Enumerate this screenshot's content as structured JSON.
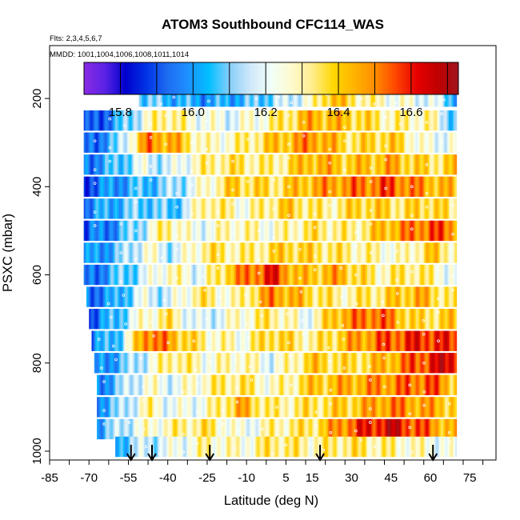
{
  "chart_data": {
    "type": "heatmap",
    "title": "ATOM3 Southbound CFC114_WAS",
    "flights_note": "Flts: 2,3,4,5,6,7",
    "dates_note": "MMDD: 1001,1004,1006,1008,1011,1014",
    "xlabel": "Latitude (deg N)",
    "ylabel": "PSXC (mbar)",
    "xlim": [
      -85,
      85
    ],
    "ylim": [
      1020,
      80
    ],
    "x_ticks": [
      -85,
      -70,
      -55,
      -40,
      -25,
      -10,
      5,
      15,
      30,
      45,
      60,
      75
    ],
    "y_ticks": [
      200,
      400,
      600,
      800,
      1000
    ],
    "colorbar": {
      "min": 15.7,
      "max": 16.73,
      "ticks": [
        15.8,
        16.0,
        16.2,
        16.4,
        16.6
      ],
      "colors": [
        "#8a2be2",
        "#5b22e6",
        "#0000cd",
        "#0033e6",
        "#1e6cf0",
        "#1e90ff",
        "#00bfff",
        "#87cefa",
        "#d0e8fa",
        "#f0fff8",
        "#fffacd",
        "#ffec8b",
        "#ffd700",
        "#ffb300",
        "#ff8c00",
        "#ff4500",
        "#e60000",
        "#c00000",
        "#a0141e"
      ]
    },
    "bands": [
      {
        "p": 200,
        "lat_min": -51,
        "lat_max": 70,
        "points": [
          [
            -51,
            16.1
          ],
          [
            -40,
            16.05
          ],
          [
            -25,
            16.0
          ],
          [
            -10,
            16.05
          ],
          [
            5,
            16.15
          ],
          [
            15,
            16.25
          ],
          [
            22,
            16.45
          ],
          [
            30,
            16.35
          ],
          [
            45,
            16.25
          ],
          [
            60,
            16.2
          ],
          [
            70,
            16.05
          ]
        ]
      },
      {
        "p": 250,
        "lat_min": -72,
        "lat_max": 70,
        "points": [
          [
            -72,
            15.85
          ],
          [
            -60,
            16.0
          ],
          [
            -50,
            16.2
          ],
          [
            -42,
            16.35
          ],
          [
            -30,
            16.25
          ],
          [
            -15,
            16.2
          ],
          [
            0,
            16.3
          ],
          [
            15,
            16.45
          ],
          [
            30,
            16.4
          ],
          [
            45,
            16.3
          ],
          [
            60,
            16.3
          ],
          [
            70,
            16.05
          ]
        ]
      },
      {
        "p": 300,
        "lat_min": -72,
        "lat_max": 70,
        "points": [
          [
            -72,
            15.9
          ],
          [
            -60,
            16.05
          ],
          [
            -48,
            16.5
          ],
          [
            -38,
            16.45
          ],
          [
            -25,
            16.25
          ],
          [
            -12,
            16.3
          ],
          [
            0,
            16.4
          ],
          [
            15,
            16.5
          ],
          [
            30,
            16.35
          ],
          [
            45,
            16.4
          ],
          [
            60,
            16.2
          ],
          [
            70,
            16.25
          ]
        ]
      },
      {
        "p": 350,
        "lat_min": -72,
        "lat_max": 70,
        "points": [
          [
            -72,
            15.95
          ],
          [
            -60,
            16.05
          ],
          [
            -50,
            16.2
          ],
          [
            -40,
            16.15
          ],
          [
            -28,
            16.3
          ],
          [
            -15,
            16.35
          ],
          [
            0,
            16.3
          ],
          [
            15,
            16.45
          ],
          [
            30,
            16.4
          ],
          [
            45,
            16.45
          ],
          [
            60,
            16.35
          ],
          [
            70,
            16.4
          ]
        ]
      },
      {
        "p": 400,
        "lat_min": -72,
        "lat_max": 70,
        "points": [
          [
            -72,
            15.9
          ],
          [
            -60,
            16.0
          ],
          [
            -50,
            16.05
          ],
          [
            -40,
            16.1
          ],
          [
            -30,
            16.2
          ],
          [
            -15,
            16.4
          ],
          [
            0,
            16.35
          ],
          [
            15,
            16.45
          ],
          [
            30,
            16.5
          ],
          [
            45,
            16.55
          ],
          [
            60,
            16.45
          ],
          [
            70,
            16.4
          ]
        ]
      },
      {
        "p": 450,
        "lat_min": -72,
        "lat_max": 70,
        "points": [
          [
            -72,
            15.95
          ],
          [
            -60,
            16.05
          ],
          [
            -48,
            16.1
          ],
          [
            -38,
            16.05
          ],
          [
            -25,
            16.35
          ],
          [
            -10,
            16.25
          ],
          [
            5,
            16.4
          ],
          [
            20,
            16.3
          ],
          [
            35,
            16.4
          ],
          [
            50,
            16.35
          ],
          [
            60,
            16.4
          ],
          [
            70,
            16.3
          ]
        ]
      },
      {
        "p": 500,
        "lat_min": -72,
        "lat_max": 70,
        "points": [
          [
            -72,
            15.9
          ],
          [
            -60,
            16.0
          ],
          [
            -50,
            16.15
          ],
          [
            -40,
            16.35
          ],
          [
            -30,
            16.2
          ],
          [
            -15,
            16.3
          ],
          [
            0,
            16.25
          ],
          [
            15,
            16.35
          ],
          [
            30,
            16.3
          ],
          [
            45,
            16.45
          ],
          [
            60,
            16.55
          ],
          [
            70,
            16.5
          ]
        ]
      },
      {
        "p": 550,
        "lat_min": -72,
        "lat_max": 70,
        "points": [
          [
            -72,
            15.95
          ],
          [
            -60,
            16.05
          ],
          [
            -48,
            16.25
          ],
          [
            -38,
            16.15
          ],
          [
            -25,
            16.35
          ],
          [
            -10,
            16.3
          ],
          [
            5,
            16.4
          ],
          [
            20,
            16.35
          ],
          [
            35,
            16.3
          ],
          [
            50,
            16.25
          ],
          [
            60,
            16.4
          ],
          [
            70,
            16.3
          ]
        ]
      },
      {
        "p": 600,
        "lat_min": -72,
        "lat_max": 70,
        "points": [
          [
            -72,
            15.9
          ],
          [
            -60,
            16.05
          ],
          [
            -50,
            16.15
          ],
          [
            -40,
            16.3
          ],
          [
            -28,
            16.2
          ],
          [
            -15,
            16.45
          ],
          [
            0,
            16.6
          ],
          [
            10,
            16.4
          ],
          [
            25,
            16.45
          ],
          [
            40,
            16.3
          ],
          [
            55,
            16.35
          ],
          [
            70,
            16.2
          ]
        ]
      },
      {
        "p": 650,
        "lat_min": -71,
        "lat_max": 70,
        "points": [
          [
            -71,
            15.95
          ],
          [
            -60,
            16.0
          ],
          [
            -50,
            16.2
          ],
          [
            -40,
            16.15
          ],
          [
            -28,
            16.35
          ],
          [
            -15,
            16.25
          ],
          [
            0,
            16.5
          ],
          [
            12,
            16.4
          ],
          [
            25,
            16.3
          ],
          [
            40,
            16.35
          ],
          [
            55,
            16.45
          ],
          [
            70,
            16.3
          ]
        ]
      },
      {
        "p": 700,
        "lat_min": -70,
        "lat_max": 70,
        "points": [
          [
            -70,
            15.9
          ],
          [
            -60,
            16.05
          ],
          [
            -50,
            16.25
          ],
          [
            -40,
            16.35
          ],
          [
            -28,
            16.15
          ],
          [
            -15,
            16.25
          ],
          [
            0,
            16.35
          ],
          [
            12,
            16.2
          ],
          [
            25,
            16.45
          ],
          [
            40,
            16.55
          ],
          [
            55,
            16.35
          ],
          [
            70,
            16.4
          ]
        ]
      },
      {
        "p": 750,
        "lat_min": -69,
        "lat_max": 70,
        "points": [
          [
            -69,
            15.95
          ],
          [
            -58,
            16.1
          ],
          [
            -48,
            16.55
          ],
          [
            -38,
            16.45
          ],
          [
            -25,
            16.3
          ],
          [
            -12,
            16.25
          ],
          [
            0,
            16.4
          ],
          [
            15,
            16.3
          ],
          [
            30,
            16.45
          ],
          [
            45,
            16.55
          ],
          [
            60,
            16.6
          ],
          [
            70,
            16.55
          ]
        ]
      },
      {
        "p": 800,
        "lat_min": -68,
        "lat_max": 70,
        "points": [
          [
            -68,
            15.95
          ],
          [
            -58,
            16.05
          ],
          [
            -48,
            16.2
          ],
          [
            -38,
            16.35
          ],
          [
            -25,
            16.25
          ],
          [
            -12,
            16.3
          ],
          [
            0,
            16.2
          ],
          [
            15,
            16.4
          ],
          [
            30,
            16.35
          ],
          [
            45,
            16.45
          ],
          [
            60,
            16.6
          ],
          [
            70,
            16.65
          ]
        ]
      },
      {
        "p": 850,
        "lat_min": -67,
        "lat_max": 70,
        "points": [
          [
            -67,
            15.95
          ],
          [
            -58,
            16.1
          ],
          [
            -48,
            16.25
          ],
          [
            -38,
            16.2
          ],
          [
            -25,
            16.3
          ],
          [
            -12,
            16.35
          ],
          [
            0,
            16.25
          ],
          [
            15,
            16.4
          ],
          [
            30,
            16.45
          ],
          [
            45,
            16.5
          ],
          [
            60,
            16.55
          ],
          [
            70,
            16.4
          ]
        ]
      },
      {
        "p": 900,
        "lat_min": -67,
        "lat_max": 70,
        "points": [
          [
            -67,
            16.0
          ],
          [
            -58,
            16.1
          ],
          [
            -48,
            16.3
          ],
          [
            -38,
            16.2
          ],
          [
            -25,
            16.25
          ],
          [
            -12,
            16.45
          ],
          [
            0,
            16.3
          ],
          [
            15,
            16.35
          ],
          [
            30,
            16.4
          ],
          [
            45,
            16.5
          ],
          [
            60,
            16.45
          ],
          [
            70,
            16.4
          ]
        ]
      },
      {
        "p": 950,
        "lat_min": -67,
        "lat_max": 70,
        "points": [
          [
            -67,
            16.0
          ],
          [
            -58,
            16.15
          ],
          [
            -48,
            16.25
          ],
          [
            -38,
            16.3
          ],
          [
            -25,
            16.35
          ],
          [
            -12,
            16.2
          ],
          [
            0,
            16.3
          ],
          [
            15,
            16.35
          ],
          [
            30,
            16.55
          ],
          [
            45,
            16.65
          ],
          [
            60,
            16.5
          ],
          [
            70,
            16.4
          ]
        ]
      },
      {
        "p": 990,
        "lat_min": -60,
        "lat_max": 70,
        "points": [
          [
            -60,
            16.05
          ],
          [
            -50,
            16.15
          ],
          [
            -38,
            16.2
          ],
          [
            -25,
            16.3
          ],
          [
            -12,
            16.25
          ],
          [
            0,
            16.35
          ],
          [
            15,
            16.3
          ],
          [
            30,
            16.35
          ],
          [
            45,
            16.3
          ],
          [
            60,
            16.25
          ],
          [
            70,
            16.2
          ]
        ]
      }
    ],
    "arrows_lat": [
      -54,
      -46,
      -24,
      18,
      61
    ]
  }
}
